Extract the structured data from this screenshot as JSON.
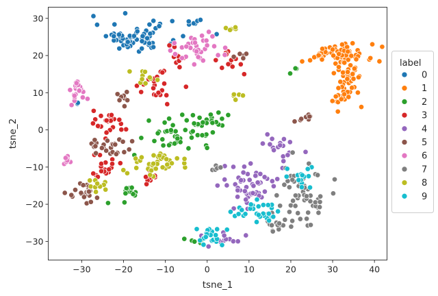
{
  "chart_data": {
    "type": "scatter",
    "title": "",
    "xlabel": "tsne_1",
    "ylabel": "tsne_2",
    "xlim": [
      -38,
      43
    ],
    "ylim": [
      -35,
      33
    ],
    "xticks": [
      -30,
      -20,
      -10,
      0,
      10,
      20,
      30,
      40
    ],
    "yticks": [
      -30,
      -20,
      -10,
      0,
      10,
      20,
      30
    ],
    "grid": false,
    "legend": {
      "title": "label",
      "placement": "right",
      "entries": [
        "0",
        "1",
        "2",
        "3",
        "4",
        "5",
        "6",
        "7",
        "8",
        "9"
      ]
    },
    "series": [
      {
        "name": "0",
        "color": "#1f77b4",
        "clusters": [
          {
            "cx": -17,
            "cy": 25,
            "rx": 9,
            "ry": 3.5,
            "n": 65
          },
          {
            "cx": -3,
            "cy": 29,
            "rx": 2,
            "ry": 1,
            "n": 6
          },
          {
            "cx": -31,
            "cy": 7,
            "rx": 1,
            "ry": 1,
            "n": 2
          }
        ]
      },
      {
        "name": "1",
        "color": "#ff7f0e",
        "clusters": [
          {
            "cx": 31,
            "cy": 20.5,
            "rx": 8,
            "ry": 2.5,
            "n": 60
          },
          {
            "cx": 34,
            "cy": 14,
            "rx": 3,
            "ry": 6,
            "n": 45
          },
          {
            "cx": 32,
            "cy": 9,
            "rx": 2,
            "ry": 3,
            "n": 15
          }
        ]
      },
      {
        "name": "2",
        "color": "#2ca02c",
        "clusters": [
          {
            "cx": -7,
            "cy": -1,
            "rx": 7,
            "ry": 3,
            "n": 35
          },
          {
            "cx": 0,
            "cy": 2,
            "rx": 5,
            "ry": 3,
            "n": 25
          },
          {
            "cx": -19,
            "cy": -17,
            "rx": 2,
            "ry": 2,
            "n": 12
          },
          {
            "cx": -2,
            "cy": -30,
            "rx": 3,
            "ry": 1,
            "n": 5
          },
          {
            "cx": 20,
            "cy": 16,
            "rx": 2,
            "ry": 1,
            "n": 3
          }
        ]
      },
      {
        "name": "3",
        "color": "#d62728",
        "clusters": [
          {
            "cx": -23,
            "cy": 2,
            "rx": 4,
            "ry": 3,
            "n": 25
          },
          {
            "cx": -25,
            "cy": -10,
            "rx": 4,
            "ry": 3,
            "n": 20
          },
          {
            "cx": -12,
            "cy": 12,
            "rx": 4,
            "ry": 4,
            "n": 22
          },
          {
            "cx": -7,
            "cy": 19,
            "rx": 2,
            "ry": 3,
            "n": 10
          },
          {
            "cx": 6,
            "cy": 18,
            "rx": 3,
            "ry": 3,
            "n": 15
          },
          {
            "cx": -14,
            "cy": -13,
            "rx": 2,
            "ry": 2,
            "n": 8
          }
        ]
      },
      {
        "name": "4",
        "color": "#9467bd",
        "clusters": [
          {
            "cx": 10,
            "cy": -15,
            "rx": 6,
            "ry": 6,
            "n": 55
          },
          {
            "cx": 18,
            "cy": -5,
            "rx": 5,
            "ry": 3,
            "n": 20
          },
          {
            "cx": 3,
            "cy": -29,
            "rx": 5,
            "ry": 2,
            "n": 15
          }
        ]
      },
      {
        "name": "5",
        "color": "#8c564b",
        "clusters": [
          {
            "cx": -23,
            "cy": -5,
            "rx": 5,
            "ry": 3,
            "n": 25
          },
          {
            "cx": -30,
            "cy": -17,
            "rx": 3,
            "ry": 3,
            "n": 22
          },
          {
            "cx": -20,
            "cy": 9,
            "rx": 2,
            "ry": 2,
            "n": 8
          },
          {
            "cx": 23,
            "cy": 3,
            "rx": 3,
            "ry": 2,
            "n": 8
          },
          {
            "cx": 8,
            "cy": 20,
            "rx": 2,
            "ry": 2,
            "n": 5
          }
        ]
      },
      {
        "name": "6",
        "color": "#e377c2",
        "clusters": [
          {
            "cx": -31,
            "cy": 11,
            "rx": 2,
            "ry": 3,
            "n": 25
          },
          {
            "cx": -2,
            "cy": 22,
            "rx": 5,
            "ry": 4,
            "n": 35
          },
          {
            "cx": -33,
            "cy": -8,
            "rx": 1.5,
            "ry": 2,
            "n": 8
          }
        ]
      },
      {
        "name": "7",
        "color": "#7f7f7f",
        "clusters": [
          {
            "cx": 23,
            "cy": -17,
            "rx": 5,
            "ry": 7,
            "n": 60
          },
          {
            "cx": 16,
            "cy": -25,
            "rx": 3,
            "ry": 2,
            "n": 15
          },
          {
            "cx": 1,
            "cy": -10,
            "rx": 2,
            "ry": 2,
            "n": 5
          }
        ]
      },
      {
        "name": "8",
        "color": "#bcbd22",
        "clusters": [
          {
            "cx": -12,
            "cy": -9,
            "rx": 6,
            "ry": 3,
            "n": 40
          },
          {
            "cx": -16,
            "cy": 14,
            "rx": 3,
            "ry": 2,
            "n": 10
          },
          {
            "cx": -26,
            "cy": -15,
            "rx": 2,
            "ry": 1.5,
            "n": 10
          },
          {
            "cx": 7,
            "cy": 9,
            "rx": 1.5,
            "ry": 1.5,
            "n": 5
          },
          {
            "cx": 6,
            "cy": 27,
            "rx": 2,
            "ry": 1,
            "n": 5
          }
        ]
      },
      {
        "name": "9",
        "color": "#17becf",
        "clusters": [
          {
            "cx": 11,
            "cy": -22,
            "rx": 5,
            "ry": 3,
            "n": 30
          },
          {
            "cx": 1,
            "cy": -28,
            "rx": 3,
            "ry": 2,
            "n": 25
          },
          {
            "cx": 22,
            "cy": -13,
            "rx": 3,
            "ry": 3,
            "n": 15
          }
        ]
      }
    ]
  }
}
